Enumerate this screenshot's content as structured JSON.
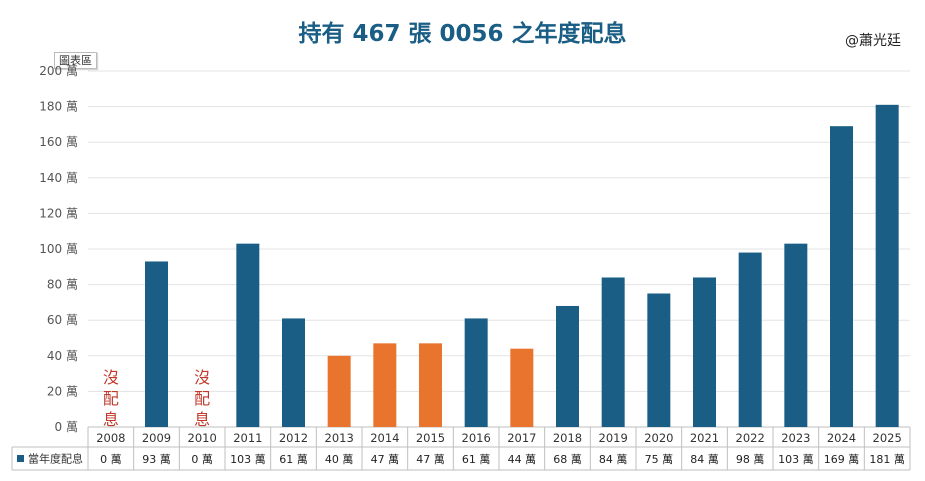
{
  "title": "持有 467 張 0056 之年度配息",
  "credit": "@蕭光廷",
  "chart_area_label": "圖表區",
  "no_dividend_note": [
    "沒",
    "配",
    "息"
  ],
  "chart_data": {
    "type": "bar",
    "categories": [
      "2008",
      "2009",
      "2010",
      "2011",
      "2012",
      "2013",
      "2014",
      "2015",
      "2016",
      "2017",
      "2018",
      "2019",
      "2020",
      "2021",
      "2022",
      "2023",
      "2024",
      "2025"
    ],
    "series": [
      {
        "name": "當年度配息",
        "values": [
          0,
          93,
          0,
          103,
          61,
          40,
          47,
          47,
          61,
          44,
          68,
          84,
          75,
          84,
          98,
          103,
          169,
          181
        ],
        "labels": [
          "0 萬",
          "93 萬",
          "0 萬",
          "103 萬",
          "61 萬",
          "40 萬",
          "47 萬",
          "47 萬",
          "61 萬",
          "44 萬",
          "68 萬",
          "84 萬",
          "75 萬",
          "84 萬",
          "98 萬",
          "103 萬",
          "169 萬",
          "181 萬"
        ]
      }
    ],
    "highlight_categories": [
      "2013",
      "2014",
      "2015",
      "2017"
    ],
    "no_dividend_categories": [
      "2008",
      "2010"
    ],
    "ylim": [
      0,
      200
    ],
    "yticks": [
      "0 萬",
      "20 萬",
      "40 萬",
      "60 萬",
      "80 萬",
      "100 萬",
      "120 萬",
      "140 萬",
      "160 萬",
      "180 萬",
      "200 萬"
    ],
    "grid": true,
    "legend": "data-table-left",
    "colors": {
      "main": "#1a5e85",
      "highlight": "#e8742e",
      "note": "#c0392b"
    }
  }
}
